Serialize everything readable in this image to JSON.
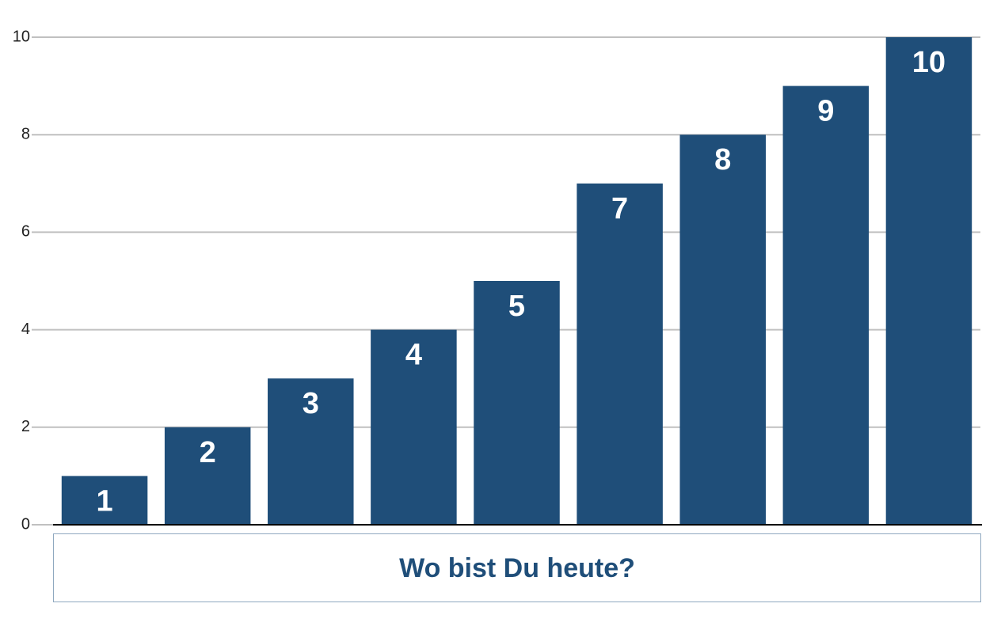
{
  "chart_data": {
    "type": "bar",
    "title": "Wo bist Du heute?",
    "categories": [
      null,
      null,
      null,
      null,
      null,
      null,
      null,
      null,
      null
    ],
    "values": [
      1,
      2,
      3,
      4,
      5,
      7,
      8,
      9,
      10
    ],
    "color": "#1f4e79",
    "ylim": [
      0,
      10
    ],
    "yticks": [
      0,
      2,
      4,
      6,
      8,
      10
    ],
    "grid": true
  }
}
